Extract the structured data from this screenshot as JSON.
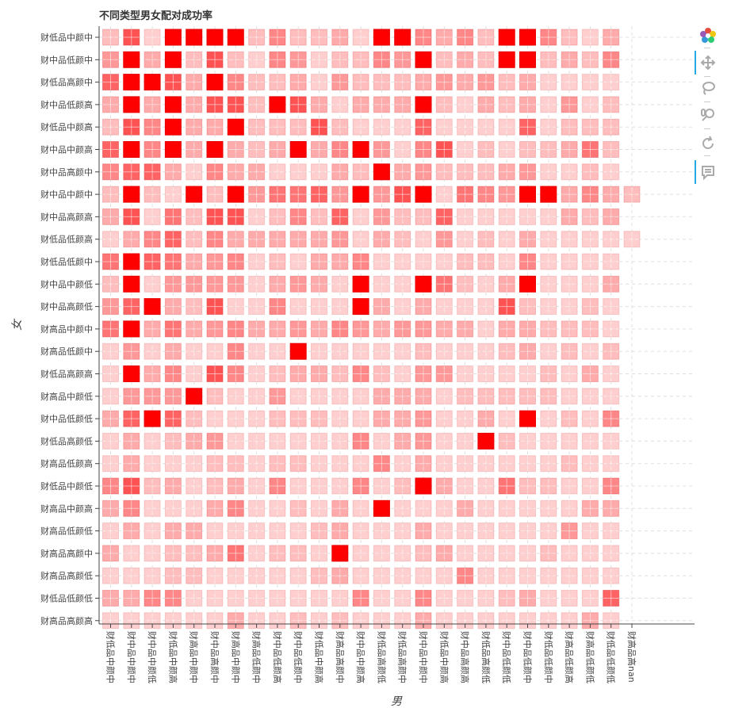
{
  "chart_data": {
    "type": "heatmap",
    "title": "不同类型男女配对成功率",
    "xlabel": "男",
    "ylabel": "女",
    "x_categories": [
      "财低品中颜中",
      "财中品中颜中",
      "财中品中颜低",
      "财低品中颜高",
      "财高品中颜中",
      "财中品高颜中",
      "财高品中颜中",
      "财高品低颜中",
      "财中品低颜高",
      "财中品低颜中",
      "财低品中颜高",
      "财高品高颜中",
      "财中品中颜高",
      "财低品高颜低",
      "财低品高颜中",
      "财中品中颜中",
      "财低品中颜高",
      "财中品高颜高",
      "财低品高颜低",
      "财中品低颜低",
      "财中品低颜中",
      "财低品低颜中",
      "财高品低颜高",
      "财高品低颜低",
      "财低品低颜低",
      "财高品高nan"
    ],
    "y_categories": [
      "财低品中颜中",
      "财中品低颜中",
      "财低品高颜中",
      "财中品低颜高",
      "财低品中颜高",
      "财中品中颜高",
      "财中品高颜中",
      "财中品中颜中",
      "财中品高颜高",
      "财低品低颜高",
      "财低品低颜中",
      "财中品中颜低",
      "财中品高颜低",
      "财高品中颜中",
      "财高品低颜中",
      "财低品高颜高",
      "财高品中颜低",
      "财中品低颜低",
      "财低品高颜低",
      "财高品低颜高",
      "财低品中颜低",
      "财高品中颜高",
      "财高品低颜低",
      "财高品高颜中",
      "财高品高颜低",
      "财低品低颜低",
      "财高品高颜高"
    ],
    "value_range": [
      0,
      1
    ],
    "values": [
      [
        0.2,
        0.8,
        0.1,
        1.0,
        1.0,
        1.0,
        1.0,
        0.2,
        0.5,
        0.2,
        0.2,
        0.3,
        0.1,
        1.0,
        1.0,
        0.5,
        0.3,
        0.5,
        0.2,
        1.0,
        1.0,
        0.5,
        0.2,
        0.1,
        0.3,
        0.0
      ],
      [
        0.4,
        1.0,
        0.3,
        1.0,
        0.2,
        0.8,
        0.2,
        0.1,
        0.5,
        0.4,
        0.1,
        0.2,
        0.2,
        0.5,
        0.4,
        1.0,
        0.2,
        0.3,
        0.2,
        1.0,
        1.0,
        0.2,
        0.3,
        0.2,
        0.5,
        0.0
      ],
      [
        0.7,
        1.0,
        1.0,
        0.8,
        0.3,
        1.0,
        0.5,
        0.2,
        0.2,
        0.3,
        0.1,
        0.4,
        0.2,
        0.2,
        0.2,
        0.3,
        0.4,
        0.3,
        0.4,
        0.2,
        0.3,
        0.1,
        0.1,
        0.1,
        0.1,
        0.0
      ],
      [
        0.3,
        1.0,
        0.3,
        1.0,
        0.3,
        0.8,
        0.8,
        0.2,
        1.0,
        0.8,
        0.3,
        0.1,
        0.3,
        0.3,
        0.3,
        1.0,
        0.2,
        0.1,
        0.3,
        0.2,
        0.3,
        0.1,
        0.4,
        0.1,
        0.2,
        0.0
      ],
      [
        0.2,
        0.8,
        0.5,
        1.0,
        0.3,
        0.3,
        1.0,
        0.2,
        0.2,
        0.2,
        0.8,
        0.2,
        0.1,
        0.1,
        0.1,
        0.7,
        0.1,
        0.1,
        0.1,
        0.1,
        0.7,
        0.1,
        0.2,
        0.2,
        0.2,
        0.0
      ],
      [
        0.7,
        1.0,
        0.5,
        1.0,
        0.3,
        1.0,
        0.3,
        0.2,
        0.3,
        1.0,
        0.3,
        0.5,
        1.0,
        0.4,
        0.1,
        0.5,
        0.8,
        0.1,
        0.2,
        0.1,
        0.2,
        0.2,
        0.3,
        0.6,
        0.2,
        0.0
      ],
      [
        0.5,
        0.7,
        0.7,
        0.3,
        0.1,
        0.5,
        0.3,
        0.3,
        0.1,
        0.1,
        0.1,
        0.3,
        0.2,
        1.0,
        0.3,
        0.4,
        0.2,
        0.2,
        0.2,
        0.3,
        0.4,
        0.1,
        0.1,
        0.2,
        0.1,
        0.0
      ],
      [
        0.2,
        1.0,
        0.2,
        0.1,
        1.0,
        0.2,
        1.0,
        0.4,
        0.6,
        0.6,
        0.7,
        0.4,
        1.0,
        0.4,
        0.8,
        1.0,
        0.1,
        0.6,
        0.5,
        0.4,
        1.0,
        1.0,
        0.3,
        0.5,
        0.3,
        0.2
      ],
      [
        0.3,
        0.8,
        0.1,
        0.6,
        0.2,
        0.8,
        0.8,
        0.1,
        0.2,
        0.5,
        0.2,
        0.7,
        0.1,
        0.4,
        0.2,
        0.2,
        0.7,
        0.1,
        0.1,
        0.1,
        0.1,
        0.1,
        0.3,
        0.2,
        0.3,
        0.0
      ],
      [
        0.1,
        0.3,
        0.5,
        0.7,
        0.2,
        0.5,
        0.3,
        0.3,
        0.3,
        0.3,
        0.3,
        0.4,
        0.1,
        0.3,
        0.2,
        0.1,
        0.4,
        0.1,
        0.2,
        0.1,
        0.3,
        0.1,
        0.1,
        0.1,
        0.1,
        0.1
      ],
      [
        0.6,
        1.0,
        0.7,
        0.6,
        0.3,
        0.4,
        0.5,
        0.1,
        0.2,
        0.1,
        0.3,
        0.3,
        0.5,
        0.1,
        0.1,
        0.1,
        0.1,
        0.2,
        0.2,
        0.1,
        0.5,
        0.1,
        0.1,
        0.1,
        0.1,
        0.0
      ],
      [
        0.2,
        1.0,
        0.1,
        0.4,
        0.4,
        0.4,
        0.4,
        0.1,
        0.3,
        0.4,
        0.3,
        0.1,
        1.0,
        0.1,
        0.1,
        1.0,
        0.6,
        0.2,
        0.1,
        0.3,
        1.0,
        0.1,
        0.1,
        0.1,
        0.3,
        0.0
      ],
      [
        0.4,
        0.7,
        1.0,
        0.3,
        0.2,
        0.8,
        0.1,
        0.1,
        0.5,
        0.1,
        0.1,
        0.1,
        1.0,
        0.3,
        0.1,
        0.3,
        0.1,
        0.1,
        0.1,
        0.8,
        0.2,
        0.1,
        0.1,
        0.2,
        0.1,
        0.0
      ],
      [
        0.6,
        1.0,
        0.3,
        0.6,
        0.3,
        0.4,
        0.5,
        0.3,
        0.3,
        0.4,
        0.3,
        0.5,
        0.4,
        0.3,
        0.4,
        0.4,
        0.3,
        0.3,
        0.1,
        0.3,
        0.3,
        0.2,
        0.2,
        0.2,
        0.1,
        0.0
      ],
      [
        0.1,
        0.4,
        0.1,
        0.3,
        0.1,
        0.1,
        0.5,
        0.1,
        0.1,
        1.0,
        0.1,
        0.1,
        0.1,
        0.1,
        0.1,
        0.2,
        0.1,
        0.1,
        0.1,
        0.2,
        0.3,
        0.1,
        0.2,
        0.1,
        0.2,
        0.0
      ],
      [
        0.1,
        1.0,
        0.3,
        0.5,
        0.1,
        0.8,
        0.5,
        0.1,
        0.2,
        0.3,
        0.3,
        0.2,
        0.5,
        0.2,
        0.1,
        0.4,
        0.4,
        0.1,
        0.1,
        0.1,
        0.1,
        0.2,
        0.1,
        0.3,
        0.1,
        0.0
      ],
      [
        0.1,
        0.4,
        0.4,
        0.4,
        1.0,
        0.2,
        0.1,
        0.1,
        0.4,
        0.1,
        0.1,
        0.1,
        0.1,
        0.3,
        0.3,
        0.3,
        0.1,
        0.2,
        0.2,
        0.2,
        0.2,
        0.2,
        0.1,
        0.1,
        0.1,
        0.0
      ],
      [
        0.3,
        0.7,
        1.0,
        0.7,
        0.2,
        0.1,
        0.1,
        0.1,
        0.2,
        0.2,
        0.2,
        0.1,
        0.1,
        0.3,
        0.3,
        0.4,
        0.1,
        0.1,
        0.3,
        0.1,
        1.0,
        0.1,
        0.2,
        0.1,
        0.5,
        0.0
      ],
      [
        0.1,
        0.3,
        0.1,
        0.2,
        0.3,
        0.4,
        0.1,
        0.1,
        0.1,
        0.1,
        0.1,
        0.1,
        0.5,
        0.1,
        0.3,
        0.4,
        0.1,
        0.1,
        1.0,
        0.2,
        0.1,
        0.1,
        0.1,
        0.1,
        0.1,
        0.0
      ],
      [
        0.1,
        0.3,
        0.1,
        0.1,
        0.1,
        0.2,
        0.2,
        0.1,
        0.2,
        0.2,
        0.1,
        0.1,
        0.1,
        0.5,
        0.1,
        0.3,
        0.1,
        0.1,
        0.1,
        0.1,
        0.1,
        0.1,
        0.2,
        0.1,
        0.1,
        0.0
      ],
      [
        0.5,
        0.8,
        0.2,
        0.3,
        0.1,
        0.2,
        0.3,
        0.1,
        0.5,
        0.1,
        0.1,
        0.1,
        0.5,
        0.1,
        0.2,
        1.0,
        0.3,
        0.1,
        0.1,
        0.6,
        0.2,
        0.2,
        0.1,
        0.1,
        0.5,
        0.0
      ],
      [
        0.3,
        0.5,
        0.1,
        0.1,
        0.1,
        0.3,
        0.5,
        0.1,
        0.1,
        0.2,
        0.1,
        0.3,
        0.1,
        1.0,
        0.1,
        0.1,
        0.1,
        0.3,
        0.1,
        0.1,
        0.1,
        0.1,
        0.1,
        0.3,
        0.3,
        0.0
      ],
      [
        0.1,
        0.3,
        0.1,
        0.3,
        0.3,
        0.1,
        0.1,
        0.1,
        0.1,
        0.1,
        0.2,
        0.3,
        0.1,
        0.1,
        0.1,
        0.3,
        0.1,
        0.1,
        0.1,
        0.1,
        0.1,
        0.1,
        0.4,
        0.1,
        0.1,
        0.0
      ],
      [
        0.3,
        0.1,
        0.1,
        0.2,
        0.2,
        0.3,
        0.6,
        0.1,
        0.2,
        0.2,
        0.1,
        1.0,
        0.1,
        0.1,
        0.1,
        0.2,
        0.3,
        0.1,
        0.1,
        0.1,
        0.1,
        0.2,
        0.1,
        0.1,
        0.1,
        0.0
      ],
      [
        0.1,
        0.1,
        0.1,
        0.2,
        0.2,
        0.1,
        0.1,
        0.1,
        0.1,
        0.1,
        0.2,
        0.3,
        0.1,
        0.1,
        0.1,
        0.1,
        0.1,
        0.5,
        0.1,
        0.1,
        0.1,
        0.1,
        0.1,
        0.1,
        0.1,
        0.0
      ],
      [
        0.3,
        0.3,
        0.5,
        0.5,
        0.1,
        0.1,
        0.1,
        0.1,
        0.1,
        0.1,
        0.1,
        0.1,
        0.5,
        0.1,
        0.1,
        0.5,
        0.1,
        0.1,
        0.1,
        0.2,
        0.3,
        0.1,
        0.1,
        0.1,
        0.7,
        0.0
      ],
      [
        0.1,
        0.1,
        0.1,
        0.1,
        0.1,
        0.1,
        0.3,
        0.1,
        0.1,
        0.2,
        0.1,
        0.2,
        0.1,
        0.1,
        0.1,
        0.3,
        0.1,
        0.1,
        0.1,
        0.1,
        0.1,
        0.1,
        0.1,
        0.3,
        0.1,
        0.0
      ]
    ],
    "grid": true
  },
  "toolbar": {
    "icons": [
      "bokeh-logo-icon",
      "pan-icon",
      "lasso-icon",
      "wheel-zoom-icon",
      "reset-icon",
      "hover-icon"
    ]
  }
}
